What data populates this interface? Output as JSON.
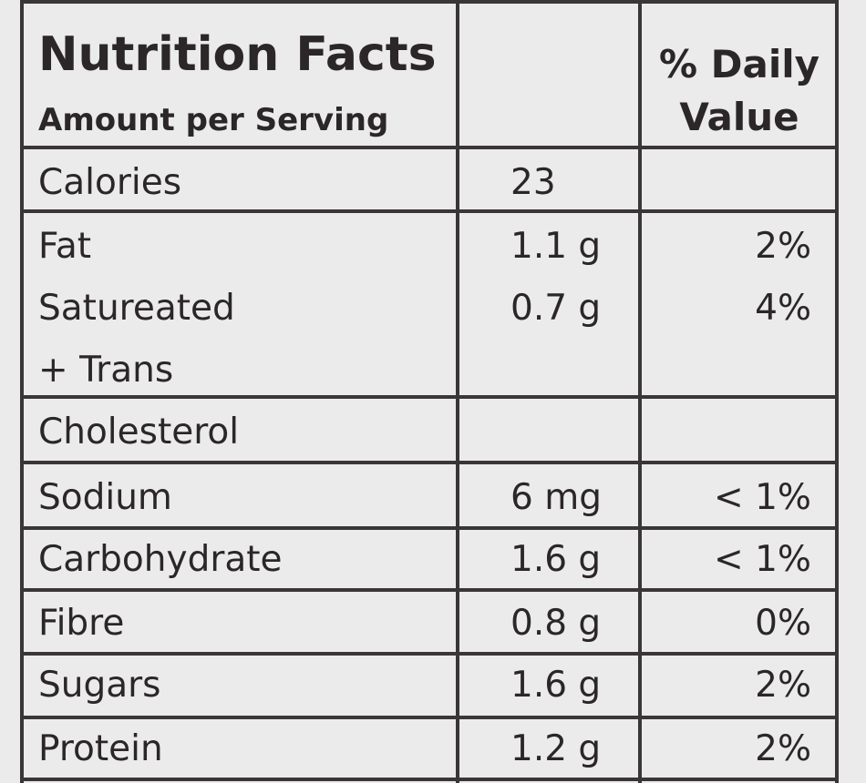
{
  "header": {
    "title": "Nutrition Facts",
    "subtitle": "Amount per Serving",
    "daily_value_line1": "% Daily",
    "daily_value_line2": "Value"
  },
  "rows": [
    {
      "label": "Calories",
      "amount": "23",
      "pct": ""
    },
    {
      "label": "Fat",
      "amount": "1.1 g",
      "pct": "2%"
    },
    {
      "label": "Satureated",
      "amount": "0.7 g",
      "pct": "4%"
    },
    {
      "label": "+ Trans",
      "amount": "",
      "pct": ""
    },
    {
      "label": "Cholesterol",
      "amount": "",
      "pct": ""
    },
    {
      "label": "Sodium",
      "amount": "6 mg",
      "pct": "< 1%"
    },
    {
      "label": "Carbohydrate",
      "amount": "1.6 g",
      "pct": "< 1%"
    },
    {
      "label": "Fibre",
      "amount": "0.8 g",
      "pct": "0%"
    },
    {
      "label": "Sugars",
      "amount": "1.6 g",
      "pct": "2%"
    },
    {
      "label": "Protein",
      "amount": "1.2 g",
      "pct": "2%"
    }
  ]
}
